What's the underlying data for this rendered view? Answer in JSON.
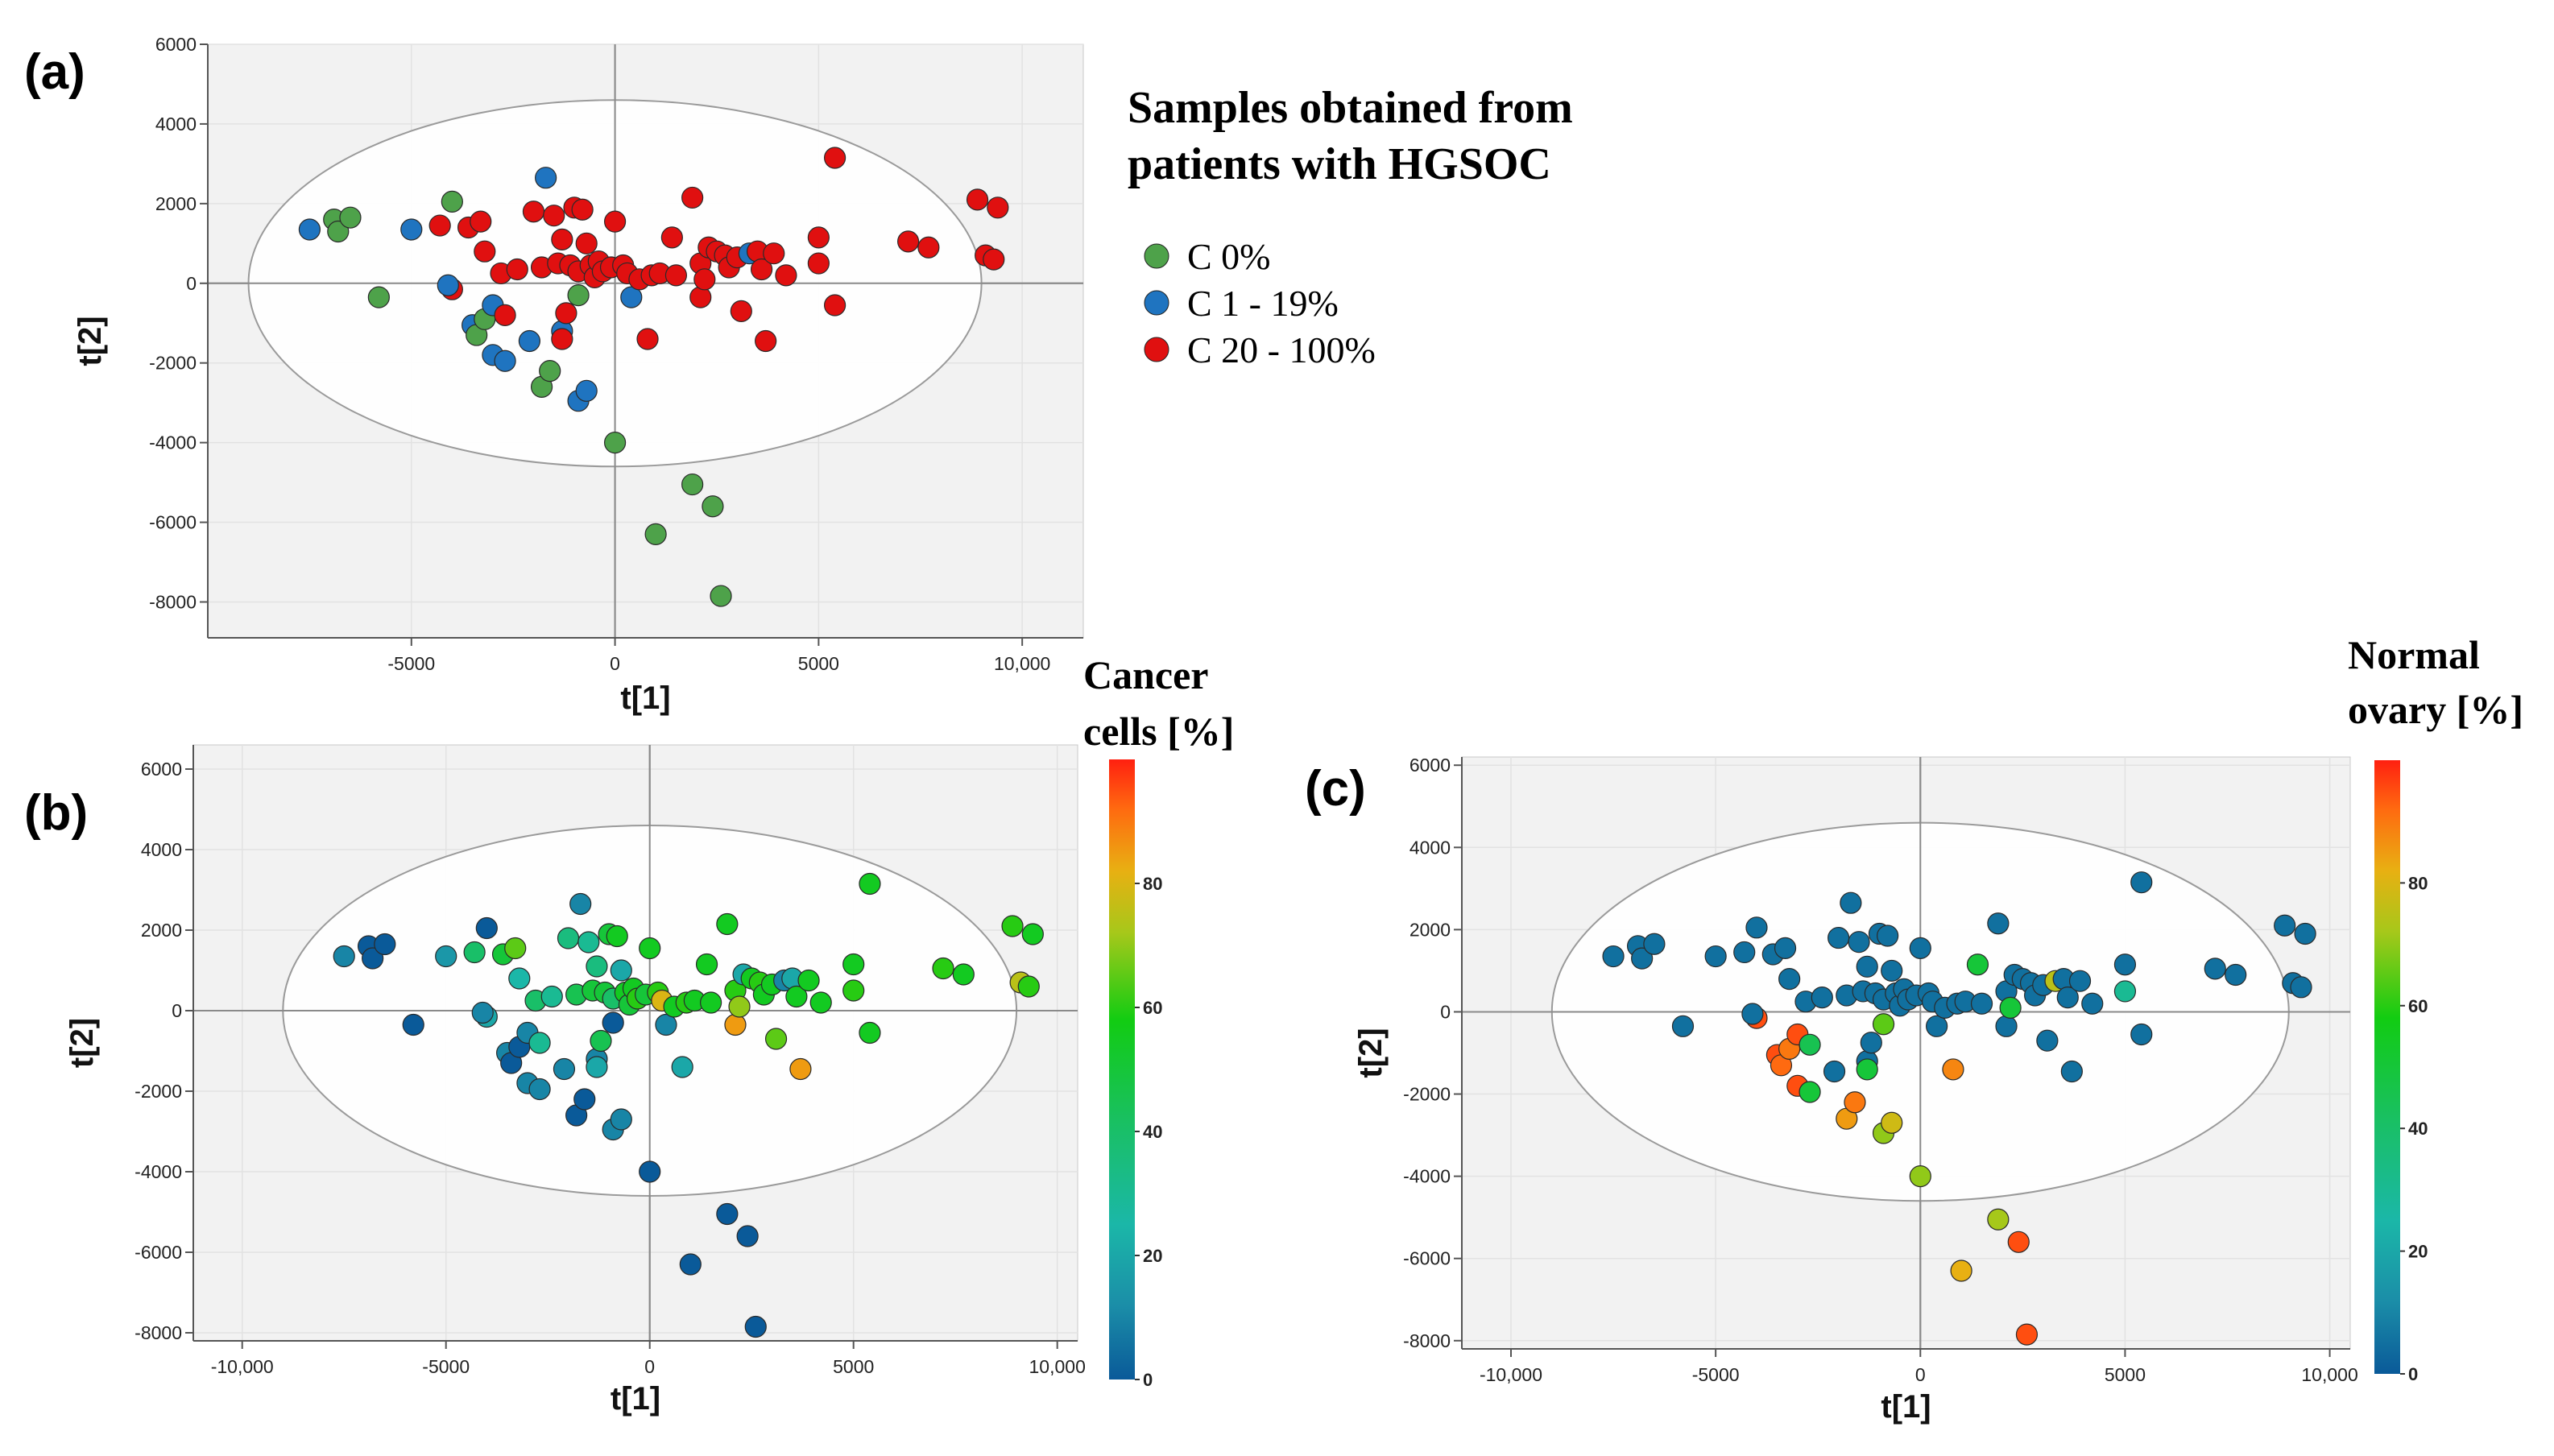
{
  "figure": {
    "legend_title_line1": "Samples obtained from",
    "legend_title_line2": "patients with HGSOC",
    "legend_entries": [
      {
        "label": "C 0%",
        "color": "#4ea24a"
      },
      {
        "label": "C 1 - 19%",
        "color": "#1f74c0"
      },
      {
        "label": "C 20 - 100%",
        "color": "#e01010"
      }
    ]
  },
  "chart_data": [
    {
      "panel": "(a)",
      "type": "scatter",
      "xlabel": "t[1]",
      "ylabel": "t[2]",
      "xlim": [
        -10000,
        11500
      ],
      "ylim": [
        -8900,
        6000
      ],
      "xticks": [
        -5000,
        0,
        5000,
        10000
      ],
      "xtick_labels": [
        "-5000",
        "0",
        "5000",
        "10,000"
      ],
      "yticks": [
        6000,
        4000,
        2000,
        0,
        -2000,
        -4000,
        -6000,
        -8000
      ],
      "ytick_labels": [
        "6000",
        "4000",
        "2000",
        "0",
        "-2000",
        "-4000",
        "-6000",
        "-8000"
      ],
      "ellipse": {
        "rx": 9000,
        "ry": 4600
      },
      "color_mode": "category"
    },
    {
      "panel": "(b)",
      "type": "scatter",
      "xlabel": "t[1]",
      "ylabel": "t[2]",
      "xlim": [
        -11200,
        10500
      ],
      "ylim": [
        -8200,
        6600
      ],
      "xticks": [
        -10000,
        -5000,
        0,
        5000,
        10000
      ],
      "xtick_labels": [
        "-10,000",
        "-5000",
        "0",
        "5000",
        "10,000"
      ],
      "yticks": [
        6000,
        4000,
        2000,
        0,
        -2000,
        -4000,
        -6000,
        -8000
      ],
      "ytick_labels": [
        "6000",
        "4000",
        "2000",
        "0",
        "-2000",
        "-4000",
        "-6000",
        "-8000"
      ],
      "ellipse": {
        "rx": 9000,
        "ry": 4600
      },
      "color_mode": "cancer",
      "colorbar": {
        "title_line1": "Cancer",
        "title_line2": "cells [%]",
        "ticks": [
          "0",
          "20",
          "40",
          "60",
          "80"
        ],
        "range": [
          0,
          100
        ]
      }
    },
    {
      "panel": "(c)",
      "type": "scatter",
      "xlabel": "t[1]",
      "ylabel": "t[2]",
      "xlim": [
        -11200,
        10500
      ],
      "ylim": [
        -8200,
        6200
      ],
      "xticks": [
        -10000,
        -5000,
        0,
        5000,
        10000
      ],
      "xtick_labels": [
        "-10,000",
        "-5000",
        "0",
        "5000",
        "10,000"
      ],
      "yticks": [
        6000,
        4000,
        2000,
        0,
        -2000,
        -4000,
        -6000,
        -8000
      ],
      "ytick_labels": [
        "6000",
        "4000",
        "2000",
        "0",
        "-2000",
        "-4000",
        "-6000",
        "-8000"
      ],
      "ellipse": {
        "rx": 9000,
        "ry": 4600
      },
      "color_mode": "normal",
      "colorbar": {
        "title_line1": "Normal",
        "title_line2": "ovary [%]",
        "ticks": [
          "0",
          "20",
          "40",
          "60",
          "80"
        ],
        "range": [
          0,
          100
        ]
      }
    }
  ],
  "samples": [
    {
      "x": -7500,
      "y": 1350,
      "cancer": 10,
      "normal": 5
    },
    {
      "x": -6900,
      "y": 1600,
      "cancer": 0,
      "normal": 5
    },
    {
      "x": -6800,
      "y": 1300,
      "cancer": 0,
      "normal": 5
    },
    {
      "x": -6500,
      "y": 1650,
      "cancer": 0,
      "normal": 5
    },
    {
      "x": -5000,
      "y": 1350,
      "cancer": 15,
      "normal": 5
    },
    {
      "x": -5800,
      "y": -350,
      "cancer": 0,
      "normal": 5
    },
    {
      "x": -4300,
      "y": 1450,
      "cancer": 40,
      "normal": 5
    },
    {
      "x": -4000,
      "y": 2050,
      "cancer": 0,
      "normal": 5
    },
    {
      "x": -3600,
      "y": 1400,
      "cancer": 50,
      "normal": 5
    },
    {
      "x": -3300,
      "y": 1550,
      "cancer": 65,
      "normal": 5
    },
    {
      "x": -3200,
      "y": 800,
      "cancer": 25,
      "normal": 5
    },
    {
      "x": -4000,
      "y": -150,
      "cancer": 20,
      "normal": 95
    },
    {
      "x": -4100,
      "y": -50,
      "cancer": 10,
      "normal": 5
    },
    {
      "x": -3500,
      "y": -1050,
      "cancer": 10,
      "normal": 95
    },
    {
      "x": -3400,
      "y": -1300,
      "cancer": 0,
      "normal": 92
    },
    {
      "x": -3200,
      "y": -900,
      "cancer": 0,
      "normal": 90
    },
    {
      "x": -3000,
      "y": -550,
      "cancer": 10,
      "normal": 95
    },
    {
      "x": -3000,
      "y": -1800,
      "cancer": 10,
      "normal": 95
    },
    {
      "x": -2700,
      "y": -1950,
      "cancer": 10,
      "normal": 50
    },
    {
      "x": -2800,
      "y": 250,
      "cancer": 40,
      "normal": 5
    },
    {
      "x": -2700,
      "y": -800,
      "cancer": 30,
      "normal": 45
    },
    {
      "x": -2400,
      "y": 350,
      "cancer": 30,
      "normal": 5
    },
    {
      "x": -2000,
      "y": 1800,
      "cancer": 35,
      "normal": 5
    },
    {
      "x": -2100,
      "y": -1450,
      "cancer": 10,
      "normal": 5
    },
    {
      "x": -1800,
      "y": 400,
      "cancer": 45,
      "normal": 5
    },
    {
      "x": -1800,
      "y": -2600,
      "cancer": 0,
      "normal": 85
    },
    {
      "x": -1600,
      "y": -2200,
      "cancer": 0,
      "normal": 90
    },
    {
      "x": -1700,
      "y": 2650,
      "cancer": 10,
      "normal": 5
    },
    {
      "x": -1500,
      "y": 1700,
      "cancer": 30,
      "normal": 5
    },
    {
      "x": -1400,
      "y": 500,
      "cancer": 50,
      "normal": 5
    },
    {
      "x": -1300,
      "y": 1100,
      "cancer": 35,
      "normal": 5
    },
    {
      "x": -1300,
      "y": -1200,
      "cancer": 10,
      "normal": 5
    },
    {
      "x": -1300,
      "y": -1400,
      "cancer": 20,
      "normal": 50
    },
    {
      "x": -1200,
      "y": -750,
      "cancer": 45,
      "normal": 5
    },
    {
      "x": -1100,
      "y": 450,
      "cancer": 50,
      "normal": 5
    },
    {
      "x": -1000,
      "y": 1900,
      "cancer": 50,
      "normal": 5
    },
    {
      "x": -900,
      "y": 300,
      "cancer": 40,
      "normal": 5
    },
    {
      "x": -800,
      "y": 1850,
      "cancer": 55,
      "normal": 5
    },
    {
      "x": -900,
      "y": -300,
      "cancer": 0,
      "normal": 65
    },
    {
      "x": -900,
      "y": -2950,
      "cancer": 10,
      "normal": 70
    },
    {
      "x": -700,
      "y": -2700,
      "cancer": 10,
      "normal": 78
    },
    {
      "x": -700,
      "y": 1000,
      "cancer": 20,
      "normal": 5
    },
    {
      "x": -600,
      "y": 450,
      "cancer": 55,
      "normal": 5
    },
    {
      "x": -500,
      "y": 150,
      "cancer": 50,
      "normal": 5
    },
    {
      "x": -400,
      "y": 550,
      "cancer": 55,
      "normal": 5
    },
    {
      "x": -300,
      "y": 300,
      "cancer": 60,
      "normal": 5
    },
    {
      "x": -100,
      "y": 400,
      "cancer": 50,
      "normal": 5
    },
    {
      "x": 0,
      "y": 1550,
      "cancer": 55,
      "normal": 5
    },
    {
      "x": 0,
      "y": -4000,
      "cancer": 0,
      "normal": 70
    },
    {
      "x": 200,
      "y": 450,
      "cancer": 60,
      "normal": 5
    },
    {
      "x": 300,
      "y": 250,
      "cancer": 80,
      "normal": 5
    },
    {
      "x": 400,
      "y": -350,
      "cancer": 10,
      "normal": 5
    },
    {
      "x": 600,
      "y": 100,
      "cancer": 55,
      "normal": 5
    },
    {
      "x": 800,
      "y": -1400,
      "cancer": 20,
      "normal": 88
    },
    {
      "x": 900,
      "y": 200,
      "cancer": 60,
      "normal": 5
    },
    {
      "x": 1000,
      "y": -6300,
      "cancer": 0,
      "normal": 82
    },
    {
      "x": 1100,
      "y": 250,
      "cancer": 55,
      "normal": 5
    },
    {
      "x": 1400,
      "y": 1150,
      "cancer": 55,
      "normal": 50
    },
    {
      "x": 1500,
      "y": 200,
      "cancer": 55,
      "normal": 5
    },
    {
      "x": 1900,
      "y": 2150,
      "cancer": 55,
      "normal": 5
    },
    {
      "x": 1900,
      "y": -5050,
      "cancer": 0,
      "normal": 72
    },
    {
      "x": 2100,
      "y": 500,
      "cancer": 60,
      "normal": 5
    },
    {
      "x": 2100,
      "y": -350,
      "cancer": 85,
      "normal": 5
    },
    {
      "x": 2200,
      "y": 100,
      "cancer": 70,
      "normal": 50
    },
    {
      "x": 2300,
      "y": 900,
      "cancer": 20,
      "normal": 5
    },
    {
      "x": 2400,
      "y": -5600,
      "cancer": 0,
      "normal": 95
    },
    {
      "x": 2500,
      "y": 800,
      "cancer": 55,
      "normal": 5
    },
    {
      "x": 2600,
      "y": -7850,
      "cancer": 0,
      "normal": 95
    },
    {
      "x": 2700,
      "y": 700,
      "cancer": 60,
      "normal": 5
    },
    {
      "x": 2800,
      "y": 400,
      "cancer": 55,
      "normal": 5
    },
    {
      "x": 3000,
      "y": 650,
      "cancer": 55,
      "normal": 5
    },
    {
      "x": 3100,
      "y": -700,
      "cancer": 65,
      "normal": 5
    },
    {
      "x": 3300,
      "y": 750,
      "cancer": 10,
      "normal": 75
    },
    {
      "x": 3500,
      "y": 800,
      "cancer": 20,
      "normal": 5
    },
    {
      "x": 3600,
      "y": 350,
      "cancer": 55,
      "normal": 5
    },
    {
      "x": 3700,
      "y": -1450,
      "cancer": 85,
      "normal": 5
    },
    {
      "x": 3900,
      "y": 750,
      "cancer": 55,
      "normal": 5
    },
    {
      "x": 4200,
      "y": 200,
      "cancer": 55,
      "normal": 5
    },
    {
      "x": 5000,
      "y": 1150,
      "cancer": 55,
      "normal": 5
    },
    {
      "x": 5000,
      "y": 500,
      "cancer": 60,
      "normal": 30
    },
    {
      "x": 5400,
      "y": 3150,
      "cancer": 55,
      "normal": 5
    },
    {
      "x": 5400,
      "y": -550,
      "cancer": 55,
      "normal": 5
    },
    {
      "x": 7200,
      "y": 1050,
      "cancer": 60,
      "normal": 5
    },
    {
      "x": 7700,
      "y": 900,
      "cancer": 55,
      "normal": 5
    },
    {
      "x": 8900,
      "y": 2100,
      "cancer": 60,
      "normal": 5
    },
    {
      "x": 9100,
      "y": 700,
      "cancer": 75,
      "normal": 5
    },
    {
      "x": 9300,
      "y": 600,
      "cancer": 60,
      "normal": 5
    },
    {
      "x": 9400,
      "y": 1900,
      "cancer": 55,
      "normal": 5
    }
  ]
}
